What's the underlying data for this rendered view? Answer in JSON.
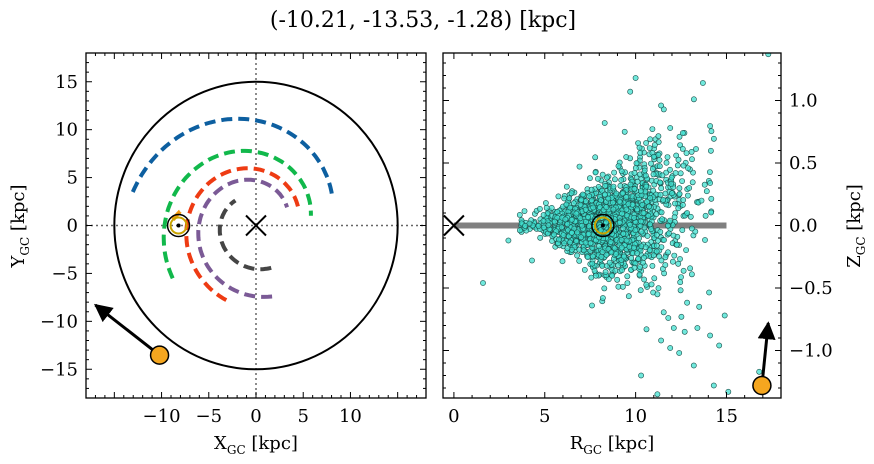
{
  "title": "(-10.21, -13.53, -1.28) [kpc]",
  "chart_data": [
    {
      "type": "scatter",
      "panel": "left",
      "xlabel": {
        "main": "X",
        "sub": "GC",
        "unit": " [kpc]"
      },
      "ylabel": {
        "main": "Y",
        "sub": "GC",
        "unit": " [kpc]"
      },
      "xlim": [
        -18,
        18
      ],
      "ylim": [
        -18,
        18
      ],
      "x_ticks": [
        -10,
        -5,
        0,
        5,
        10
      ],
      "y_ticks": [
        -15,
        -10,
        -5,
        0,
        5,
        10,
        15
      ],
      "x_tick_labels": [
        "−10",
        "−5",
        "0",
        "5",
        "10"
      ],
      "y_tick_labels": [
        "−15",
        "−10",
        "−5",
        "0",
        "5",
        "10",
        "15"
      ],
      "galaxy_circle_radius": 15,
      "galactic_center": [
        0,
        0
      ],
      "sun_position": [
        -8.2,
        0
      ],
      "target_position": [
        -10.21,
        -13.53
      ],
      "target_velocity_arrow_end": [
        -17.0,
        -8.3
      ],
      "target_color": "#f5a61f",
      "crosshair_style": "dotted",
      "spiral_arms": [
        {
          "color": "#0d5fa0",
          "r_start": 13.5,
          "r_end": 8.6,
          "theta_start_deg": 165,
          "theta_end_deg": 20
        },
        {
          "color": "#11b84b",
          "r_start": 10.4,
          "r_end": 5.9,
          "theta_start_deg": 212,
          "theta_end_deg": 10
        },
        {
          "color": "#f39c12",
          "r_start": 8.8,
          "r_end": 8.0,
          "theta_start_deg": 176,
          "theta_end_deg": 168
        },
        {
          "color": "#ee3b13",
          "r_start": 8.4,
          "r_end": 4.8,
          "theta_start_deg": 248,
          "theta_end_deg": 20
        },
        {
          "color": "#7b5a96",
          "r_start": 7.6,
          "r_end": 3.8,
          "theta_start_deg": 283,
          "theta_end_deg": 30
        },
        {
          "color": "#454545",
          "r_start": 4.7,
          "r_end": 3.4,
          "theta_start_deg": 290,
          "theta_end_deg": 130
        }
      ]
    },
    {
      "type": "scatter",
      "panel": "right",
      "xlabel": {
        "main": "R",
        "sub": "GC",
        "unit": " [kpc]"
      },
      "ylabel": {
        "main": "Z",
        "sub": "GC",
        "unit": " [kpc]"
      },
      "xlim": [
        -0.6,
        18.0
      ],
      "ylim": [
        -1.38,
        1.38
      ],
      "x_ticks": [
        0,
        5,
        10,
        15
      ],
      "y_ticks": [
        -1.0,
        -0.5,
        0.0,
        0.5,
        1.0
      ],
      "x_tick_labels": [
        "0",
        "5",
        "10",
        "15"
      ],
      "y_tick_labels": [
        "−1.0",
        "−0.5",
        "0.0",
        "0.5",
        "1.0"
      ],
      "ylabel_side": "right",
      "disk_line": {
        "x": [
          0,
          15
        ],
        "y": 0,
        "color": "#808080"
      },
      "galactic_center": [
        0,
        0
      ],
      "sun_position": [
        8.2,
        0
      ],
      "target_position": [
        16.95,
        -1.28
      ],
      "target_velocity_arrow_end": [
        17.3,
        -0.78
      ],
      "star_color": "#40e0d0",
      "star_edge_color": "#1b4f4a",
      "stars_outlier_points": [
        [
          10.0,
          1.18
        ],
        [
          13.7,
          1.14
        ],
        [
          17.3,
          1.37
        ],
        [
          9.7,
          1.07
        ],
        [
          11.4,
          0.96
        ],
        [
          8.3,
          0.82
        ],
        [
          11.9,
          0.78
        ],
        [
          10.8,
          0.69
        ],
        [
          9.4,
          0.75
        ],
        [
          12.6,
          0.74
        ],
        [
          11.0,
          0.55
        ],
        [
          13.1,
          0.53
        ],
        [
          12.2,
          0.42
        ],
        [
          10.5,
          0.44
        ],
        [
          14.1,
          0.34
        ],
        [
          1.6,
          -0.46
        ],
        [
          4.3,
          -0.28
        ],
        [
          3.0,
          -0.12
        ],
        [
          7.6,
          -0.64
        ],
        [
          8.2,
          -0.58
        ],
        [
          9.3,
          -0.49
        ],
        [
          11.2,
          -0.55
        ],
        [
          11.8,
          -0.74
        ],
        [
          12.1,
          -0.82
        ],
        [
          11.4,
          -0.92
        ],
        [
          11.9,
          -0.98
        ],
        [
          12.4,
          -1.02
        ],
        [
          12.7,
          -0.85
        ],
        [
          13.5,
          -0.65
        ],
        [
          13.4,
          -0.82
        ],
        [
          14.1,
          -0.88
        ],
        [
          14.6,
          -0.96
        ],
        [
          13.2,
          -1.12
        ],
        [
          10.3,
          -1.2
        ],
        [
          11.2,
          -1.35
        ],
        [
          14.3,
          -1.28
        ],
        [
          15.1,
          -1.33
        ],
        [
          16.8,
          -1.17
        ],
        [
          14.9,
          -0.72
        ],
        [
          10.6,
          -0.83
        ]
      ],
      "stars_bulk_count": 1500,
      "stars_bulk_seed": 7
    }
  ]
}
